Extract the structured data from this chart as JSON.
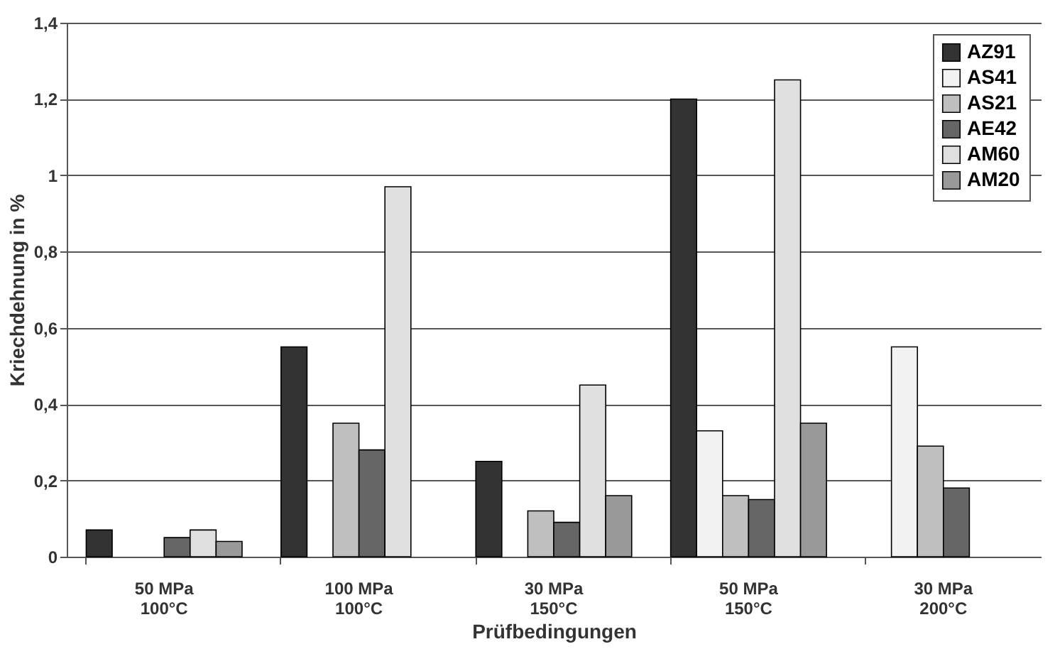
{
  "chart_data": {
    "type": "bar",
    "xlabel": "Prüfbedingungen",
    "ylabel": "Kriechdehnung in %",
    "categories": [
      "50 MPa\n100°C",
      "100 MPa\n100°C",
      "30 MPa\n150°C",
      "50 MPa\n150°C",
      "30 MPa\n200°C"
    ],
    "series": [
      {
        "name": "AZ91",
        "color": "#333333",
        "values": [
          0.07,
          0.55,
          0.25,
          1.2,
          null
        ]
      },
      {
        "name": "AS41",
        "color": "#f2f2f2",
        "values": [
          null,
          null,
          null,
          0.33,
          0.55
        ]
      },
      {
        "name": "AS21",
        "color": "#bfbfbf",
        "values": [
          null,
          0.35,
          0.12,
          0.16,
          0.29
        ]
      },
      {
        "name": "AE42",
        "color": "#666666",
        "values": [
          0.05,
          0.28,
          0.09,
          0.15,
          0.18
        ]
      },
      {
        "name": "AM60",
        "color": "#e0e0e0",
        "values": [
          0.07,
          0.97,
          0.45,
          1.25,
          null
        ]
      },
      {
        "name": "AM20",
        "color": "#999999",
        "values": [
          0.04,
          null,
          0.16,
          0.35,
          null
        ]
      }
    ],
    "ylim": [
      0,
      1.4
    ],
    "yticks": [
      0,
      {
        "value": 0.2,
        "label": "0,2"
      },
      {
        "value": 0.4,
        "label": "0,4"
      },
      {
        "value": 0.6,
        "label": "0,6"
      },
      {
        "value": 0.8,
        "label": "0,8"
      },
      1,
      {
        "value": 1.2,
        "label": "1,2"
      },
      {
        "value": 1.4,
        "label": "1,4"
      }
    ],
    "grid": "y",
    "legend": "top right"
  }
}
